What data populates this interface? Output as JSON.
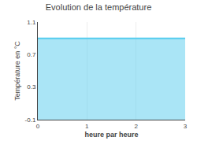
{
  "chart_data": {
    "type": "area",
    "title": "Evolution de la température",
    "xlabel": "heure par heure",
    "ylabel": "Température en °C",
    "x": [
      0,
      3
    ],
    "values": [
      0.9,
      0.9
    ],
    "color": "#55ccee",
    "xlim": [
      0,
      3
    ],
    "ylim": [
      -0.1,
      1.1
    ],
    "xticks": [
      0,
      1,
      2,
      3
    ],
    "yticks": [
      -0.1,
      0.3,
      0.7,
      1.1
    ],
    "grid": "x"
  }
}
